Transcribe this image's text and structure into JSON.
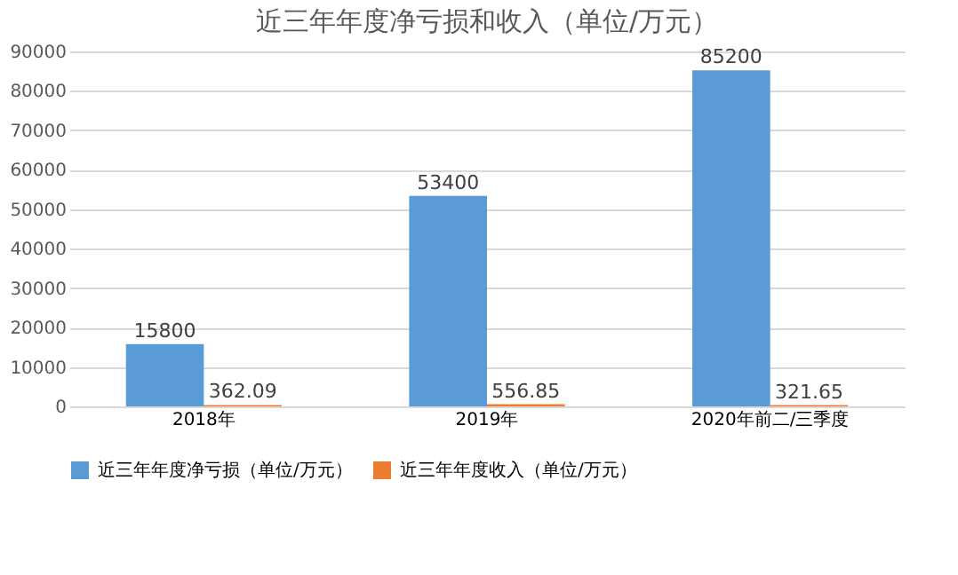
{
  "chart_data": {
    "type": "bar",
    "title": "近三年年度净亏损和收入（单位/万元）",
    "categories": [
      "2018年",
      "2019年",
      "2020年前二/三季度"
    ],
    "series": [
      {
        "name": "近三年年度净亏损（单位/万元）",
        "color": "#5b9bd5",
        "values": [
          15800,
          53400,
          85200
        ]
      },
      {
        "name": "近三年年度收入（单位/万元）",
        "color": "#ed7d31",
        "values": [
          362.09,
          556.85,
          321.65
        ]
      }
    ],
    "ylim": [
      0,
      90000
    ],
    "yticks": [
      0,
      10000,
      20000,
      30000,
      40000,
      50000,
      60000,
      70000,
      80000,
      90000
    ],
    "grid": "y",
    "legend": "bottom",
    "data_labels": true
  }
}
